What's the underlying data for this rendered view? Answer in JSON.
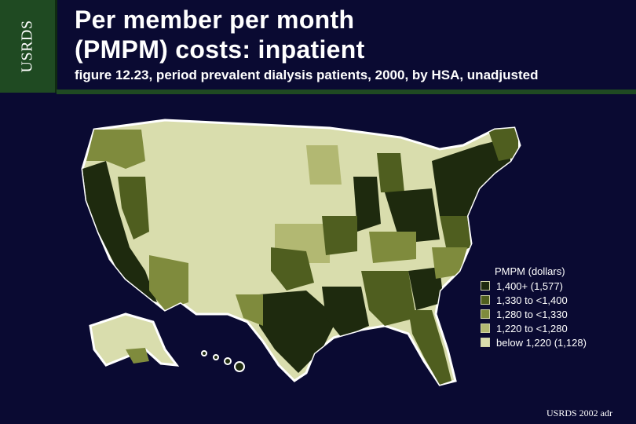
{
  "side_label": "USRDS",
  "title_line1": "Per member per month",
  "title_line2": "(PMPM) costs: inpatient",
  "subtitle": "figure 12.23, period prevalent dialysis patients, 2000, by HSA, unadjusted",
  "legend": {
    "title": "PMPM (dollars)",
    "items": [
      {
        "label": "1,400+ (1,577)",
        "color": "#1e2a0e"
      },
      {
        "label": "1,330 to <1,400",
        "color": "#4f5e1f"
      },
      {
        "label": "1,280 to <1,330",
        "color": "#7f8b3d"
      },
      {
        "label": "1,220 to <1,280",
        "color": "#b2b872"
      },
      {
        "label": "below 1,220 (1,128)",
        "color": "#d9ddad"
      }
    ]
  },
  "footer": "USRDS 2002 adr"
}
